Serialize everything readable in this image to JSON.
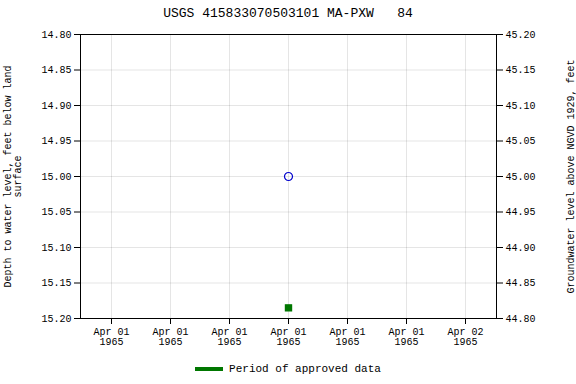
{
  "chart_data": {
    "type": "scatter",
    "title": "USGS 415833070503101 MA-PXW   84",
    "categories": [
      "Apr 01\n1965",
      "Apr 01\n1965",
      "Apr 01\n1965",
      "Apr 01\n1965",
      "Apr 01\n1965",
      "Apr 01\n1965",
      "Apr 02\n1965"
    ],
    "series": [
      {
        "color": "#0000cc",
        "marker": "circle",
        "values": [
          null,
          null,
          null,
          15.0,
          null,
          null,
          null
        ]
      },
      {
        "name": "Period of approved data",
        "color": "#007700",
        "marker": "square",
        "values": [
          null,
          null,
          null,
          15.185,
          null,
          null,
          null
        ]
      }
    ],
    "ylabel": "Depth to water level, feet below land\nsurface",
    "y2label": "Groundwater level above NGVD 1929, feet",
    "ylim": [
      15.2,
      14.8
    ],
    "yticks": [
      {
        "value": 14.8,
        "label": "14.80"
      },
      {
        "value": 14.85,
        "label": "14.85"
      },
      {
        "value": 14.9,
        "label": "14.90"
      },
      {
        "value": 14.95,
        "label": "14.95"
      },
      {
        "value": 15.0,
        "label": "15.00"
      },
      {
        "value": 15.05,
        "label": "15.05"
      },
      {
        "value": 15.1,
        "label": "15.10"
      },
      {
        "value": 15.15,
        "label": "15.15"
      },
      {
        "value": 15.2,
        "label": "15.20"
      }
    ],
    "y2lim": [
      44.8,
      45.2
    ],
    "y2ticks": [
      {
        "value": 45.2,
        "label": "45.20"
      },
      {
        "value": 45.15,
        "label": "45.15"
      },
      {
        "value": 45.1,
        "label": "45.10"
      },
      {
        "value": 45.05,
        "label": "45.05"
      },
      {
        "value": 45.0,
        "label": "45.00"
      },
      {
        "value": 44.95,
        "label": "44.95"
      },
      {
        "value": 44.9,
        "label": "44.90"
      },
      {
        "value": 44.85,
        "label": "44.85"
      },
      {
        "value": 44.8,
        "label": "44.80"
      }
    ],
    "grid": true,
    "legend": "bottom"
  }
}
